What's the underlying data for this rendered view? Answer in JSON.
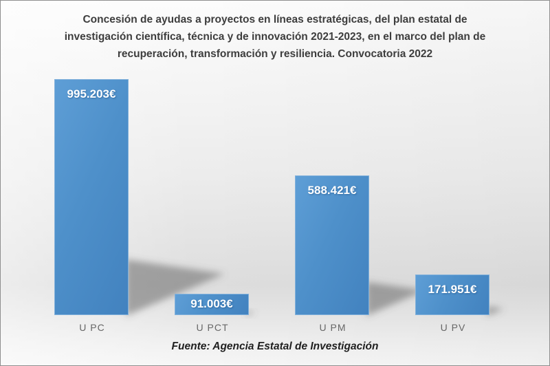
{
  "chart_data": {
    "type": "bar",
    "title": "Concesión de ayudas a proyectos en líneas estratégicas, del plan estatal de investigación científica, técnica y de innovación 2021-2023, en el marco del plan de recuperación, transformación y resiliencia. Convocatoria 2022",
    "categories": [
      "UPC",
      "UPCT",
      "UPM",
      "UPV"
    ],
    "categories_display": [
      "U PC",
      "U PCT",
      "U PM",
      "U PV"
    ],
    "values": [
      995203,
      91003,
      588421,
      171951
    ],
    "values_display": [
      "995.203€",
      "91.003€",
      "588.421€",
      "171.951€"
    ],
    "unit": "€",
    "source": "Fuente: Agencia Estatal de Investigación",
    "xlabel": "",
    "ylabel": "",
    "grid": false,
    "legend": "none",
    "bar_color": "#4e90ca",
    "bar_color_light": "#5e9ed6",
    "bar_color_dark": "#4282bf",
    "bar_border_color": "#82b1db",
    "value_label_color": "#ffffff",
    "category_label_color": "#666666",
    "title_color": "#3d3d3d",
    "source_color": "#202020",
    "shadow_style": "perspective-lower-right"
  }
}
